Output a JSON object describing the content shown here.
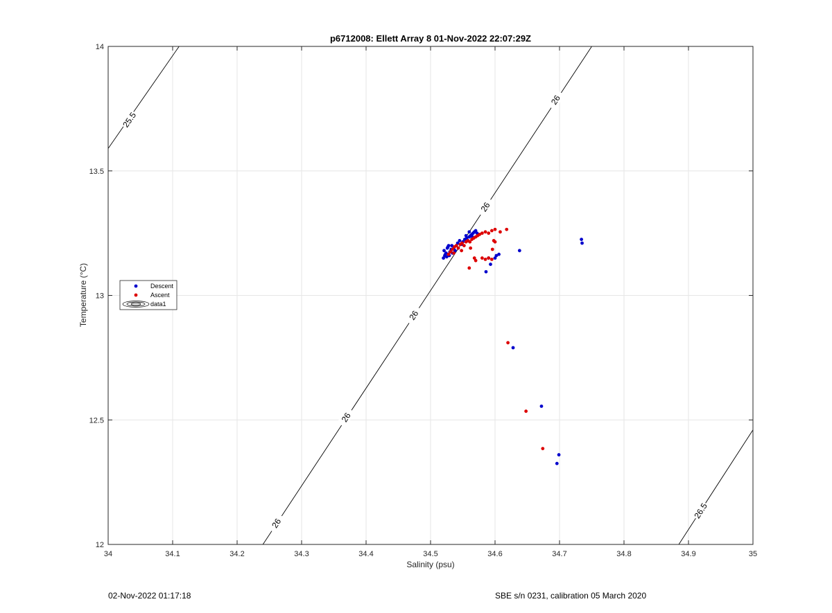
{
  "chart_data": {
    "type": "scatter",
    "title": "p6712008: Ellett Array 8 01-Nov-2022 22:07:29Z",
    "xlabel": "Salinity (psu)",
    "ylabel": "Temperature (°C)",
    "xlim": [
      34,
      35
    ],
    "ylim": [
      12,
      14
    ],
    "xticks": [
      34,
      34.1,
      34.2,
      34.3,
      34.4,
      34.5,
      34.6,
      34.7,
      34.8,
      34.9,
      35
    ],
    "xtick_labels": [
      "34",
      "34.1",
      "34.2",
      "34.3",
      "34.4",
      "34.5",
      "34.6",
      "34.7",
      "34.8",
      "34.9",
      "35"
    ],
    "yticks": [
      12,
      12.5,
      13,
      13.5,
      14
    ],
    "ytick_labels": [
      "12",
      "12.5",
      "13",
      "13.5",
      "14"
    ],
    "grid": true,
    "legend": {
      "placement": "left",
      "entries": [
        "Descent",
        "Ascent",
        "data1"
      ]
    },
    "contours": [
      {
        "level": "25.5",
        "points": [
          [
            34.0,
            13.59
          ],
          [
            34.11,
            14.0
          ]
        ],
        "labels": [
          {
            "text": "25.5",
            "x": 34.033,
            "y": 13.705
          }
        ]
      },
      {
        "level": "26",
        "points": [
          [
            34.24,
            12.0
          ],
          [
            34.75,
            14.0
          ]
        ],
        "labels": [
          {
            "text": "26",
            "x": 34.261,
            "y": 12.085
          },
          {
            "text": "26",
            "x": 34.369,
            "y": 12.51
          },
          {
            "text": "26",
            "x": 34.474,
            "y": 12.92
          },
          {
            "text": "26",
            "x": 34.585,
            "y": 13.355
          },
          {
            "text": "26",
            "x": 34.694,
            "y": 13.785
          }
        ]
      },
      {
        "level": "26.5",
        "points": [
          [
            34.885,
            12.0
          ],
          [
            35.0,
            12.46
          ]
        ],
        "labels": [
          {
            "text": "26.5",
            "x": 34.919,
            "y": 12.135
          }
        ]
      }
    ],
    "series": [
      {
        "name": "Descent",
        "color": "#0000cc",
        "points": [
          [
            34.52,
            13.15
          ],
          [
            34.522,
            13.16
          ],
          [
            34.524,
            13.17
          ],
          [
            34.521,
            13.18
          ],
          [
            34.526,
            13.19
          ],
          [
            34.528,
            13.2
          ],
          [
            34.523,
            13.165
          ],
          [
            34.525,
            13.155
          ],
          [
            34.53,
            13.175
          ],
          [
            34.532,
            13.185
          ],
          [
            34.527,
            13.195
          ],
          [
            34.529,
            13.16
          ],
          [
            34.534,
            13.17
          ],
          [
            34.536,
            13.19
          ],
          [
            34.533,
            13.2
          ],
          [
            34.538,
            13.18
          ],
          [
            34.54,
            13.2
          ],
          [
            34.542,
            13.21
          ],
          [
            34.545,
            13.22
          ],
          [
            34.548,
            13.205
          ],
          [
            34.55,
            13.215
          ],
          [
            34.553,
            13.225
          ],
          [
            34.556,
            13.23
          ],
          [
            34.558,
            13.22
          ],
          [
            34.56,
            13.235
          ],
          [
            34.562,
            13.24
          ],
          [
            34.564,
            13.245
          ],
          [
            34.566,
            13.25
          ],
          [
            34.568,
            13.255
          ],
          [
            34.57,
            13.26
          ],
          [
            34.572,
            13.25
          ],
          [
            34.574,
            13.245
          ],
          [
            34.565,
            13.235
          ],
          [
            34.56,
            13.255
          ],
          [
            34.555,
            13.24
          ],
          [
            34.59,
            13.15
          ],
          [
            34.6,
            13.15
          ],
          [
            34.606,
            13.165
          ],
          [
            34.602,
            13.16
          ],
          [
            34.593,
            13.125
          ],
          [
            34.586,
            13.095
          ],
          [
            34.638,
            13.18
          ],
          [
            34.734,
            13.225
          ],
          [
            34.735,
            13.21
          ],
          [
            34.628,
            12.79
          ],
          [
            34.672,
            12.555
          ],
          [
            34.699,
            12.36
          ],
          [
            34.696,
            12.325
          ]
        ]
      },
      {
        "name": "Ascent",
        "color": "#dd0000",
        "points": [
          [
            34.528,
            13.165
          ],
          [
            34.531,
            13.175
          ],
          [
            34.534,
            13.185
          ],
          [
            34.537,
            13.195
          ],
          [
            34.54,
            13.2
          ],
          [
            34.543,
            13.19
          ],
          [
            34.546,
            13.205
          ],
          [
            34.549,
            13.21
          ],
          [
            34.552,
            13.2
          ],
          [
            34.555,
            13.215
          ],
          [
            34.558,
            13.22
          ],
          [
            34.561,
            13.215
          ],
          [
            34.564,
            13.225
          ],
          [
            34.567,
            13.23
          ],
          [
            34.57,
            13.235
          ],
          [
            34.573,
            13.24
          ],
          [
            34.576,
            13.245
          ],
          [
            34.58,
            13.25
          ],
          [
            34.585,
            13.255
          ],
          [
            34.59,
            13.25
          ],
          [
            34.595,
            13.26
          ],
          [
            34.6,
            13.265
          ],
          [
            34.608,
            13.255
          ],
          [
            34.618,
            13.265
          ],
          [
            34.536,
            13.17
          ],
          [
            34.548,
            13.18
          ],
          [
            34.562,
            13.19
          ],
          [
            34.58,
            13.15
          ],
          [
            34.585,
            13.145
          ],
          [
            34.59,
            13.15
          ],
          [
            34.595,
            13.145
          ],
          [
            34.596,
            13.185
          ],
          [
            34.598,
            13.22
          ],
          [
            34.6,
            13.215
          ],
          [
            34.568,
            13.15
          ],
          [
            34.57,
            13.14
          ],
          [
            34.56,
            13.11
          ],
          [
            34.62,
            12.81
          ],
          [
            34.648,
            12.535
          ],
          [
            34.674,
            12.385
          ]
        ]
      }
    ]
  },
  "footer": {
    "left": "02-Nov-2022 01:17:18",
    "right": "SBE s/n 0231, calibration 05 March 2020"
  }
}
